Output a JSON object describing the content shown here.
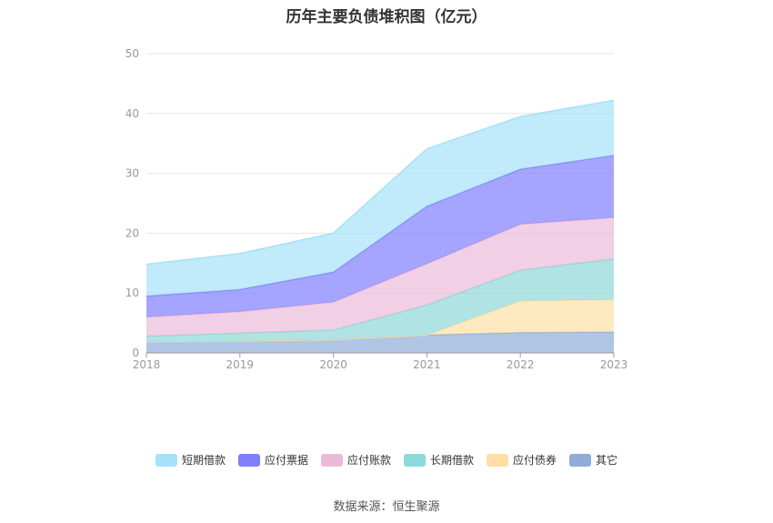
{
  "title": "历年主要负债堆积图（亿元）",
  "source": "数据来源：恒生聚源",
  "chart_data": {
    "type": "area",
    "stacked": true,
    "categories": [
      "2018",
      "2019",
      "2020",
      "2021",
      "2022",
      "2023"
    ],
    "ylim": [
      0,
      50
    ],
    "yticks": [
      0,
      10,
      20,
      30,
      40,
      50
    ],
    "grid": true,
    "legend_position": "bottom",
    "series": [
      {
        "name": "其它",
        "color": "#8fadd8",
        "values": [
          1.9,
          2.0,
          2.2,
          3.0,
          3.4,
          3.5
        ]
      },
      {
        "name": "应付债券",
        "color": "#ffdfa6",
        "values": [
          0,
          0,
          0,
          0,
          5.3,
          5.4
        ]
      },
      {
        "name": "长期借款",
        "color": "#8ed9d9",
        "values": [
          0.9,
          1.3,
          1.6,
          5.0,
          5.1,
          6.8
        ]
      },
      {
        "name": "应付账款",
        "color": "#ebbad9",
        "values": [
          3.2,
          3.6,
          4.7,
          6.9,
          7.7,
          6.9
        ]
      },
      {
        "name": "应付票据",
        "color": "#7f7fff",
        "values": [
          3.5,
          3.7,
          5.0,
          9.6,
          9.2,
          10.4
        ]
      },
      {
        "name": "短期借款",
        "color": "#a6e1f9",
        "values": [
          5.3,
          6.0,
          6.5,
          9.6,
          8.8,
          9.2
        ]
      }
    ]
  },
  "legend": [
    {
      "label": "短期借款",
      "color": "#a6e1f9"
    },
    {
      "label": "应付票据",
      "color": "#7f7fff"
    },
    {
      "label": "应付账款",
      "color": "#ebbad9"
    },
    {
      "label": "长期借款",
      "color": "#8ed9d9"
    },
    {
      "label": "应付债券",
      "color": "#ffdfa6"
    },
    {
      "label": "其它",
      "color": "#8fadd8"
    }
  ]
}
